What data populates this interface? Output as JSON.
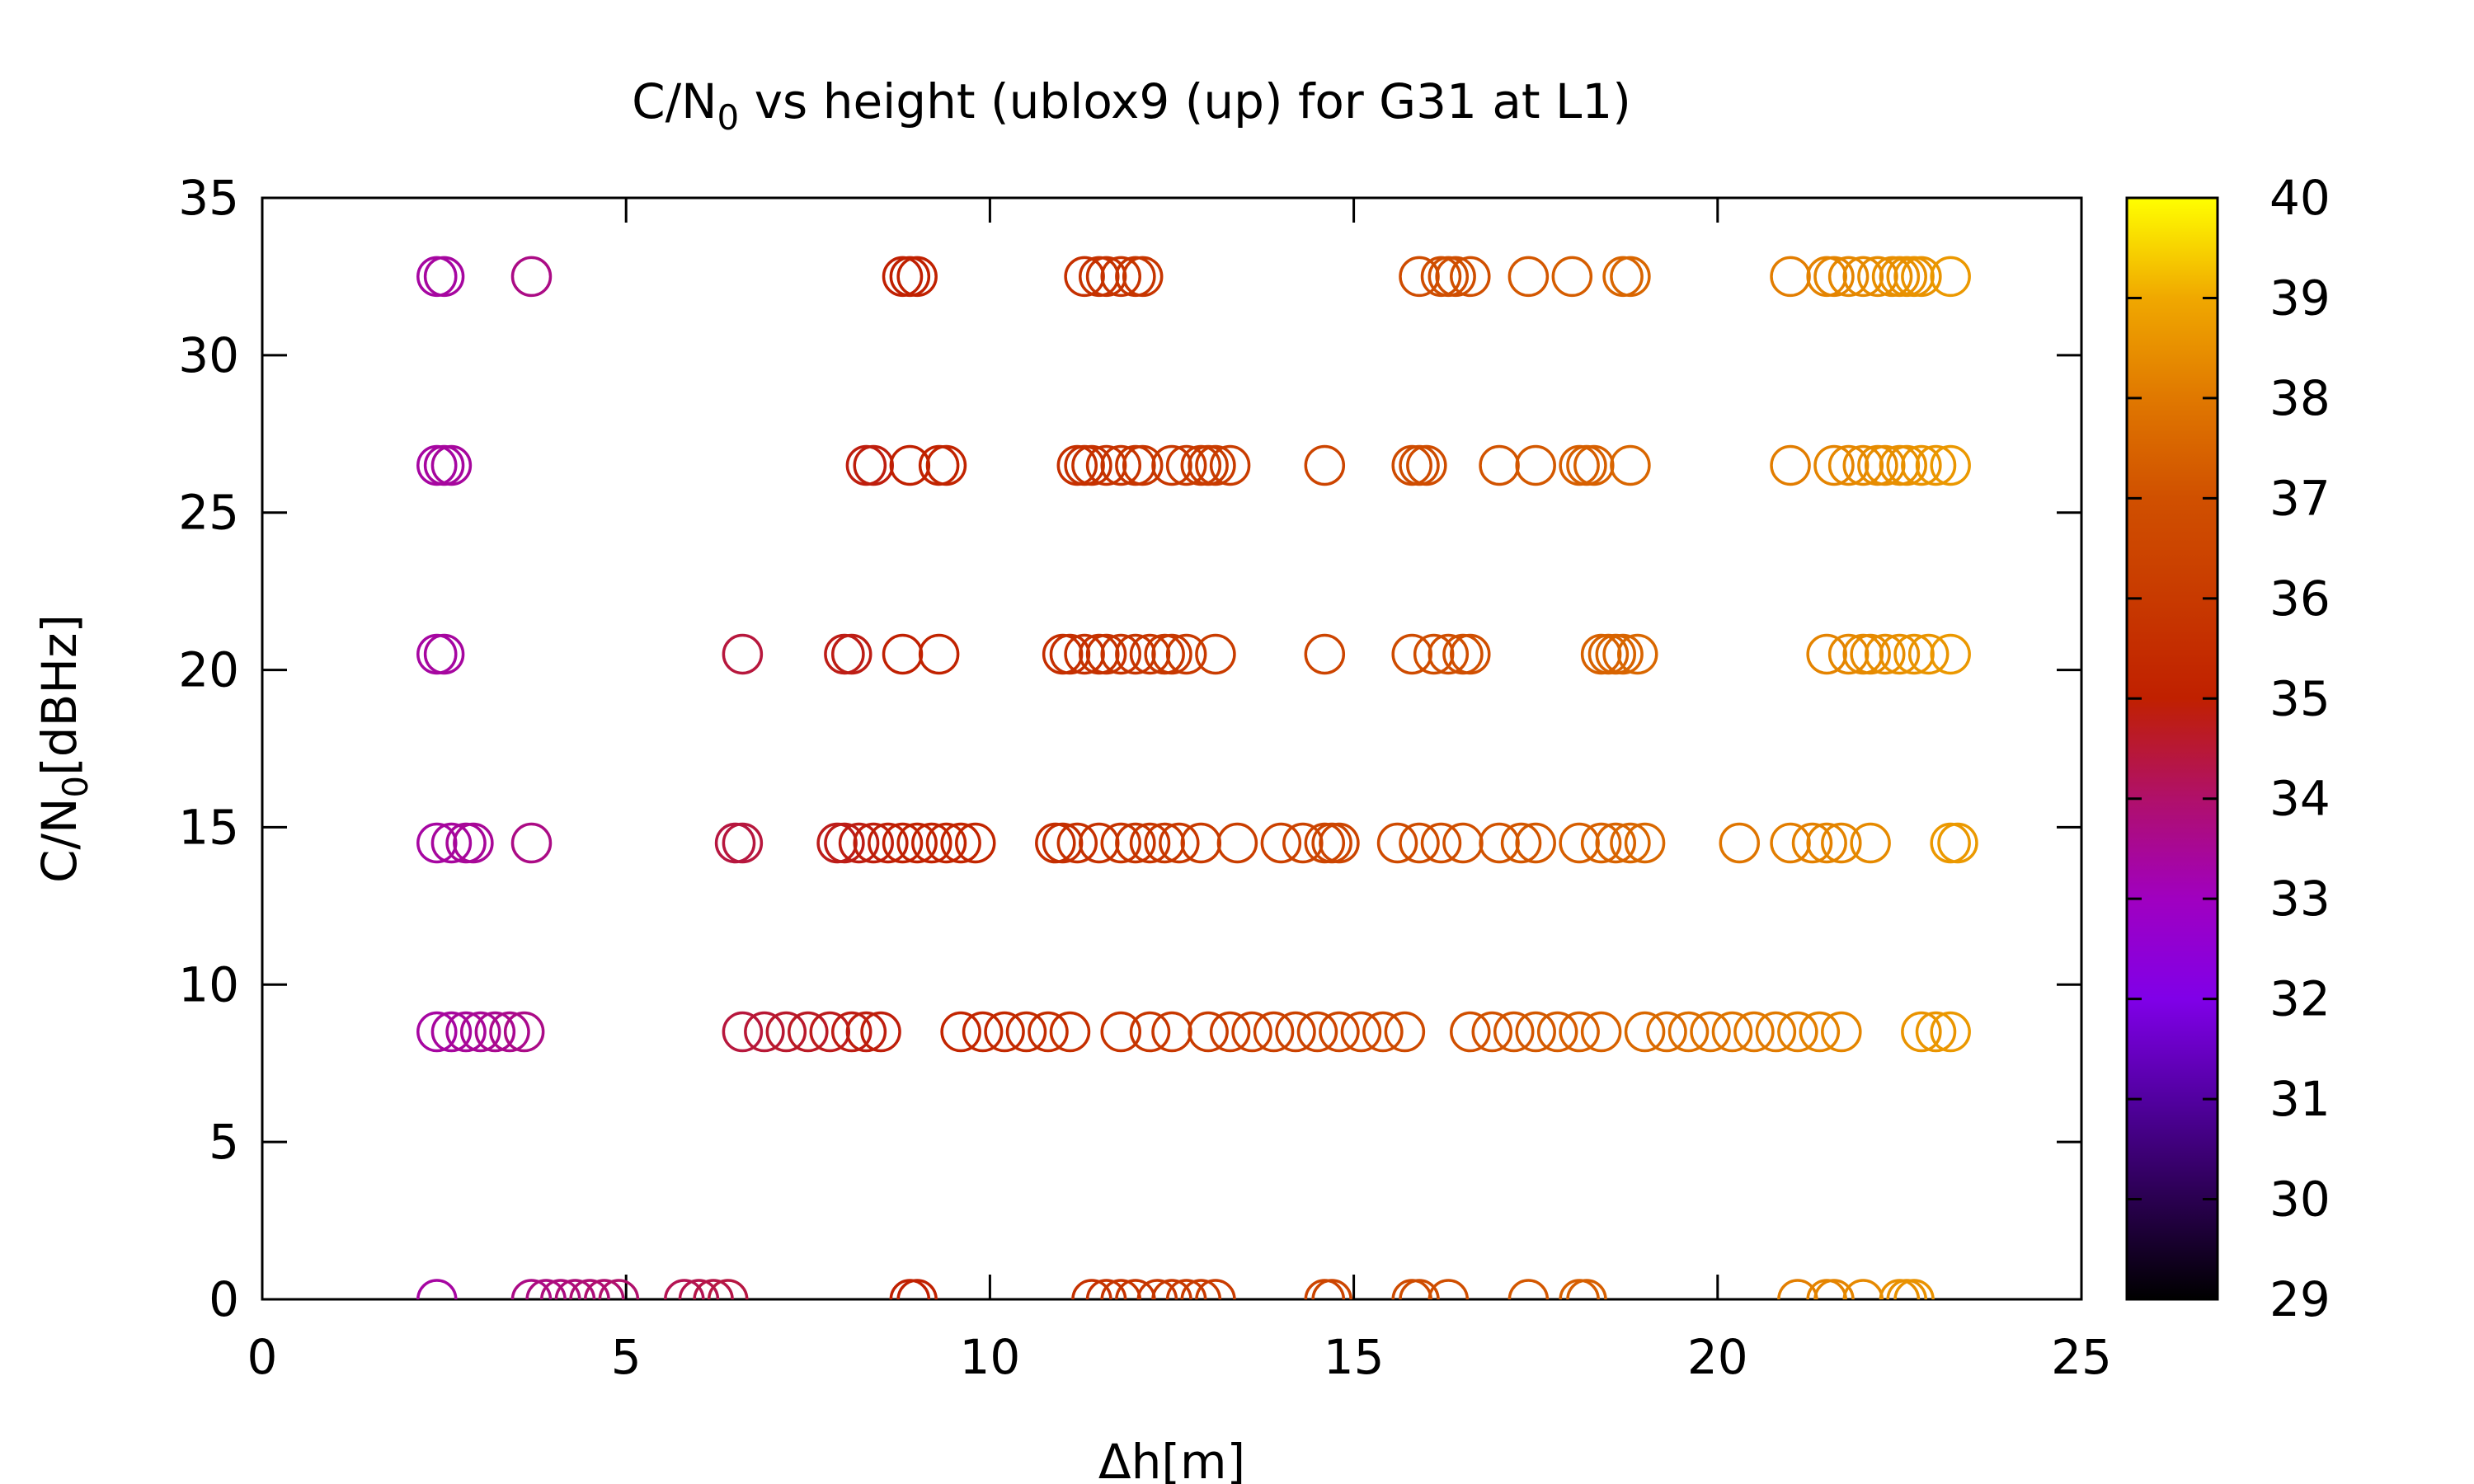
{
  "chart_data": {
    "type": "scatter",
    "title": "C/N",
    "title_subscript": "0",
    "title_rest": " vs height (ublox9 (up) for G31 at L1)",
    "xlabel": "Δh[m]",
    "ylabel_main": "C/N",
    "ylabel_sub": "0",
    "ylabel_rest": "[dBHz]",
    "xlim": [
      0,
      25
    ],
    "ylim": [
      0,
      35
    ],
    "xticks": [
      0,
      5,
      10,
      15,
      20,
      25
    ],
    "yticks": [
      0,
      5,
      10,
      15,
      20,
      25,
      30,
      35
    ],
    "colorbar": {
      "range": [
        29,
        40
      ],
      "ticks": [
        29,
        30,
        31,
        32,
        33,
        34,
        35,
        36,
        37,
        38,
        39,
        40
      ],
      "colors": [
        "#000000",
        "#2a0050",
        "#5200a0",
        "#8000e8",
        "#a000c0",
        "#b0106a",
        "#c02000",
        "#c83a00",
        "#d05000",
        "#e07800",
        "#f0a800",
        "#ffff00"
      ]
    },
    "marker": "open-circle",
    "grid": false,
    "series": [
      {
        "y": 32.5,
        "x": [
          2.4,
          2.5,
          3.7,
          8.8,
          8.9,
          9.0,
          11.3,
          11.5,
          11.6,
          11.8,
          12.0,
          12.1,
          15.9,
          16.2,
          16.3,
          16.4,
          16.6,
          17.4,
          18.0,
          18.7,
          18.8,
          21.0,
          21.5,
          21.6,
          21.8,
          22.0,
          22.2,
          22.4,
          22.5,
          22.6,
          22.7,
          22.8,
          23.2
        ]
      },
      {
        "y": 26.5,
        "x": [
          2.4,
          2.5,
          2.6,
          8.3,
          8.4,
          8.9,
          9.3,
          9.4,
          11.2,
          11.3,
          11.4,
          11.6,
          11.8,
          12.0,
          12.1,
          12.5,
          12.7,
          12.9,
          13.0,
          13.1,
          13.3,
          14.6,
          15.8,
          15.9,
          16.0,
          17.0,
          17.5,
          18.1,
          18.2,
          18.3,
          18.8,
          21.0,
          21.6,
          21.8,
          22.0,
          22.2,
          22.3,
          22.5,
          22.6,
          22.8,
          23.0,
          23.2
        ]
      },
      {
        "y": 20.5,
        "x": [
          2.4,
          2.5,
          6.6,
          8.0,
          8.1,
          8.8,
          9.3,
          11.0,
          11.1,
          11.3,
          11.5,
          11.6,
          11.8,
          12.0,
          12.2,
          12.4,
          12.5,
          12.7,
          13.1,
          14.6,
          15.8,
          16.1,
          16.3,
          16.5,
          16.6,
          18.4,
          18.5,
          18.6,
          18.7,
          18.9,
          21.5,
          21.8,
          22.0,
          22.1,
          22.3,
          22.5,
          22.7,
          22.9,
          23.2
        ]
      },
      {
        "y": 14.5,
        "x": [
          2.4,
          2.6,
          2.8,
          2.9,
          3.7,
          6.5,
          6.6,
          7.9,
          8.0,
          8.2,
          8.4,
          8.6,
          8.8,
          9.0,
          9.2,
          9.4,
          9.6,
          9.8,
          10.9,
          11.0,
          11.2,
          11.5,
          11.8,
          12.0,
          12.2,
          12.4,
          12.6,
          12.9,
          13.4,
          14.0,
          14.3,
          14.6,
          14.7,
          14.8,
          15.6,
          15.9,
          16.2,
          16.5,
          17.0,
          17.3,
          17.5,
          18.1,
          18.4,
          18.6,
          18.8,
          19.0,
          20.3,
          21.0,
          21.3,
          21.5,
          21.7,
          22.1,
          23.2,
          23.3
        ]
      },
      {
        "y": 8.5,
        "x": [
          2.4,
          2.6,
          2.8,
          3.0,
          3.2,
          3.4,
          3.6,
          6.6,
          6.9,
          7.2,
          7.5,
          7.8,
          8.1,
          8.3,
          8.5,
          9.6,
          9.9,
          10.2,
          10.5,
          10.8,
          11.1,
          11.8,
          12.2,
          12.5,
          13.0,
          13.3,
          13.6,
          13.9,
          14.2,
          14.5,
          14.8,
          15.1,
          15.4,
          15.7,
          16.6,
          16.9,
          17.2,
          17.5,
          17.8,
          18.1,
          18.4,
          19.0,
          19.3,
          19.6,
          19.9,
          20.2,
          20.5,
          20.8,
          21.1,
          21.4,
          21.7,
          22.8,
          23.0,
          23.2
        ]
      },
      {
        "y": 0,
        "x": [
          2.4,
          3.7,
          3.9,
          4.1,
          4.3,
          4.5,
          4.7,
          4.9,
          5.8,
          6.0,
          6.2,
          6.4,
          8.9,
          9.0,
          11.4,
          11.6,
          11.8,
          12.0,
          12.3,
          12.5,
          12.7,
          12.9,
          13.1,
          14.6,
          14.7,
          15.8,
          15.9,
          16.3,
          17.4,
          18.1,
          18.2,
          21.1,
          21.5,
          21.6,
          22.0,
          22.5,
          22.6,
          22.7
        ]
      }
    ]
  }
}
